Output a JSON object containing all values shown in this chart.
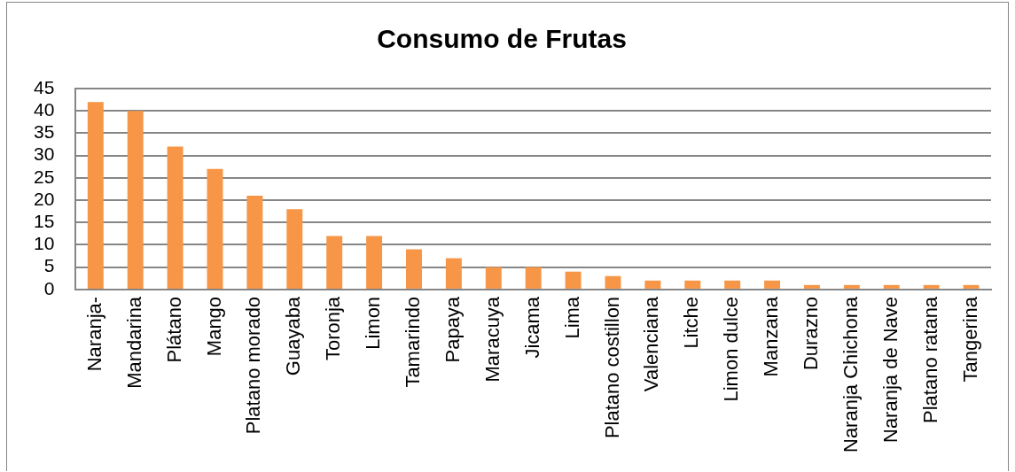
{
  "chart_data": {
    "type": "bar",
    "title": "Consumo de Frutas",
    "categories": [
      "Naranja-",
      "Mandarina",
      "Plátano",
      "Mango",
      "Platano morado",
      "Guayaba",
      "Toronja",
      "Limon",
      "Tamarindo",
      "Papaya",
      "Maracuya",
      "Jicama",
      "Lima",
      "Platano costillon",
      "Valenciana",
      "Litche",
      "Limon dulce",
      "Manzana",
      "Durazno",
      "Naranja Chichona",
      "Naranja de Nave",
      "Platano ratana",
      "Tangerina"
    ],
    "values": [
      42,
      40,
      32,
      27,
      21,
      18,
      12,
      12,
      9,
      7,
      5,
      5,
      4,
      3,
      2,
      2,
      2,
      2,
      1,
      1,
      1,
      1,
      1
    ],
    "color": "#f79646",
    "ylim": [
      0,
      45
    ],
    "yticks": [
      0,
      5,
      10,
      15,
      20,
      25,
      30,
      35,
      40,
      45
    ],
    "grid": "y"
  }
}
